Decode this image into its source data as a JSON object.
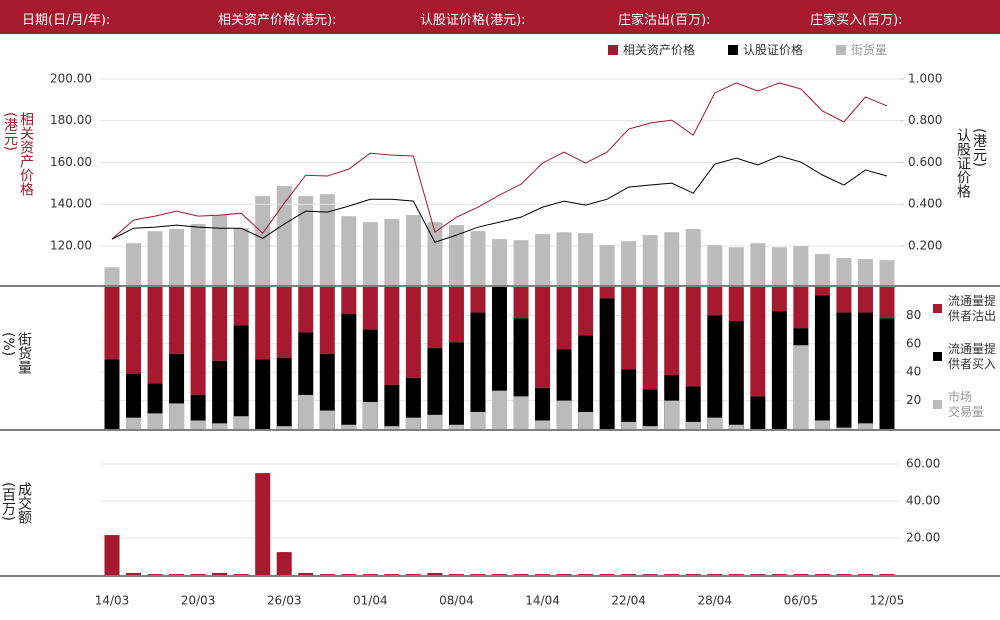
{
  "header": {
    "items": [
      "日期(日/月/年):",
      "相关资产价格(港元):",
      "认股证价格(港元):",
      "庄家沽出(百万):",
      "庄家买入(百万):"
    ]
  },
  "chart_data": [
    {
      "type": "combo",
      "y_label": "相关资产价格(港元)",
      "y2_label": "认股证价格(港元)",
      "legend": "top",
      "ylim": [
        101.3,
        206.7
      ],
      "yticks": [
        {
          "value": 120,
          "label": "120.00"
        },
        {
          "value": 140,
          "label": "140.00"
        },
        {
          "value": 160,
          "label": "160.00"
        },
        {
          "value": 180,
          "label": "180.00"
        },
        {
          "value": 200,
          "label": "200.00"
        }
      ],
      "y2lim": [
        0.013,
        1.067
      ],
      "y2ticks": [
        {
          "value": 0.2,
          "label": "0.200"
        },
        {
          "value": 0.4,
          "label": "0.400"
        },
        {
          "value": 0.6,
          "label": "0.600"
        },
        {
          "value": 0.8,
          "label": "0.800"
        },
        {
          "value": 1,
          "label": "1.000"
        }
      ],
      "grid": true,
      "series": [
        {
          "name": "相关资产价格",
          "color": "#a6192e",
          "mark": "line",
          "values": [
            123.3,
            132.4,
            134.3,
            136.7,
            134.3,
            134.8,
            135.7,
            126.1,
            140.5,
            153.9,
            153.5,
            156.8,
            164.5,
            163.5,
            163.1,
            126.6,
            133.8,
            138.6,
            144.4,
            149.6,
            159.7,
            165,
            159.7,
            165,
            176,
            178.9,
            180.3,
            173.1,
            193.3,
            198.1,
            194.2,
            198.1,
            195.2,
            184.7,
            179.4,
            191.4,
            187.1
          ]
        },
        {
          "name": "认股证价格",
          "color": "#000000",
          "mark": "line",
          "axis": "y2",
          "values": [
            0.233,
            0.285,
            0.29,
            0.3,
            0.29,
            0.285,
            0.285,
            0.237,
            0.305,
            0.367,
            0.362,
            0.391,
            0.424,
            0.424,
            0.415,
            0.218,
            0.252,
            0.29,
            0.314,
            0.338,
            0.386,
            0.415,
            0.396,
            0.424,
            0.482,
            0.492,
            0.501,
            0.453,
            0.592,
            0.621,
            0.588,
            0.631,
            0.602,
            0.54,
            0.492,
            0.564,
            0.535
          ]
        },
        {
          "name": "街货量",
          "color": "#bbbbbb",
          "mark": "bar",
          "values": [
            109.8,
            121.3,
            127.1,
            128.1,
            130.5,
            134.8,
            128.5,
            143.9,
            148.7,
            143.9,
            144.8,
            134.3,
            131.4,
            132.9,
            134.8,
            131.4,
            130,
            127.1,
            123.3,
            122.8,
            125.7,
            126.6,
            126.1,
            120.4,
            122.3,
            125.2,
            126.6,
            128.1,
            120.4,
            119.4,
            121.3,
            119.4,
            119.9,
            116.1,
            114.2,
            113.7,
            113.2
          ]
        }
      ]
    },
    {
      "type": "bar",
      "y_label": "街货量(%)",
      "legend": "right",
      "ylim": [
        0,
        100
      ],
      "yticks": [
        20,
        40,
        60,
        80
      ],
      "grid": true,
      "series": [
        {
          "name": "流通量提\n供者沽出",
          "color": "#a6192e",
          "anchor": "top",
          "values": [
            51,
            61,
            68,
            47,
            76,
            52,
            27,
            51,
            50,
            32,
            47,
            19,
            30,
            69,
            64,
            43,
            39,
            18,
            0,
            22,
            71,
            44,
            34,
            8,
            58,
            72,
            62,
            70,
            20,
            24,
            77,
            17,
            29,
            6,
            18,
            18,
            22
          ]
        },
        {
          "name": "流通量提\n供者买入",
          "color": "#000000",
          "anchor": "bottom",
          "values": [
            49,
            39,
            32,
            53,
            24,
            48,
            73,
            49,
            50,
            68,
            53,
            81,
            70,
            31,
            36,
            57,
            61,
            82,
            100,
            78,
            29,
            56,
            66,
            92,
            42,
            28,
            38,
            30,
            80,
            76,
            23,
            83,
            71,
            94,
            82,
            82,
            78
          ]
        },
        {
          "name": "市场\n交易量",
          "color": "#bbbbbb",
          "anchor": "bottom",
          "values": [
            0,
            8,
            11,
            18,
            6,
            4,
            9,
            0,
            2,
            24,
            13,
            3,
            19,
            2,
            8,
            10,
            3,
            12,
            27,
            23,
            6,
            20,
            12,
            0,
            5,
            2,
            20,
            5,
            8,
            3,
            0,
            0,
            59,
            6,
            1,
            4,
            0
          ]
        }
      ]
    },
    {
      "type": "bar",
      "y_label": "成交额(百万)",
      "color": "#a6192e",
      "ylim": [
        0,
        64.9
      ],
      "yticks": [
        {
          "value": 20,
          "label": "20.00"
        },
        {
          "value": 40,
          "label": "40.00"
        },
        {
          "value": 60,
          "label": "60.00"
        }
      ],
      "grid": true,
      "categories": [
        "14/03",
        null,
        null,
        null,
        "20/03",
        null,
        null,
        null,
        "26/03",
        null,
        null,
        null,
        "01/04",
        null,
        null,
        null,
        "08/04",
        null,
        null,
        null,
        "14/04",
        null,
        null,
        null,
        "22/04",
        null,
        null,
        null,
        "28/04",
        null,
        null,
        null,
        "06/05",
        null,
        null,
        null,
        "12/05"
      ],
      "values": [
        21.6,
        1.1,
        0.5,
        0.5,
        0.5,
        1.1,
        0.5,
        55.1,
        12.4,
        1.1,
        0.5,
        0.5,
        0.5,
        0.5,
        0.5,
        1.1,
        0.5,
        0.5,
        0.5,
        0.5,
        0.5,
        0.5,
        0.5,
        0.5,
        0.5,
        0.5,
        0.5,
        0.5,
        0.5,
        0.5,
        0.5,
        0.5,
        0.5,
        0.5,
        0.5,
        0.5,
        0.5
      ]
    }
  ]
}
